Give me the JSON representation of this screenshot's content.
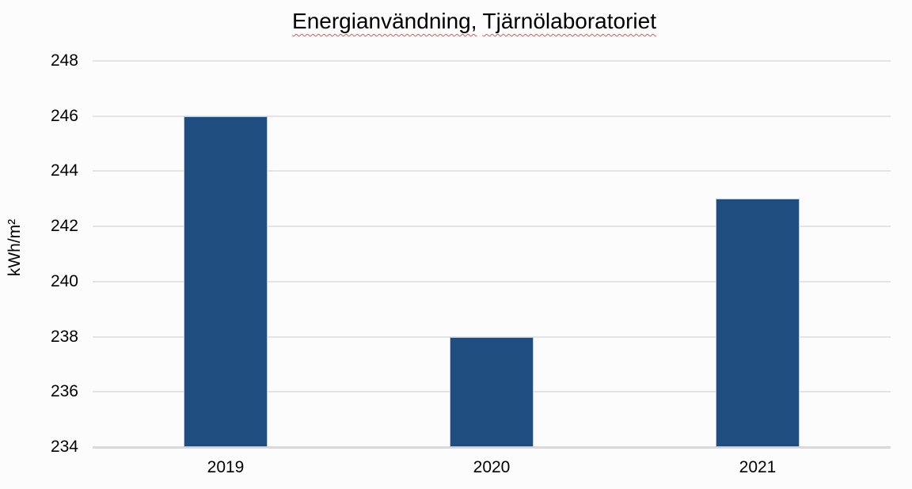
{
  "title": {
    "words": [
      "Energianvändning,",
      "Tjärnölaboratoriet"
    ]
  },
  "chart_data": {
    "type": "bar",
    "title": "Energianvändning, Tjärnölaboratoriet",
    "categories": [
      "2019",
      "2020",
      "2021"
    ],
    "values": [
      246,
      238,
      243
    ],
    "xlabel": "",
    "ylabel": "kWh/m²",
    "ylim": [
      234,
      248
    ],
    "ytick_step": 2,
    "yticks": [
      234,
      236,
      238,
      240,
      242,
      244,
      246,
      248
    ],
    "grid": true,
    "legend": false,
    "colors": {
      "bar": "#1e4e80",
      "bar_border": "#b9c9dd",
      "gridline": "#e4e4e4",
      "baseline": "#d9d9d9",
      "text": "#000000",
      "spellcheck_underline": "#e0564a",
      "background": "#fcfcfc"
    }
  }
}
